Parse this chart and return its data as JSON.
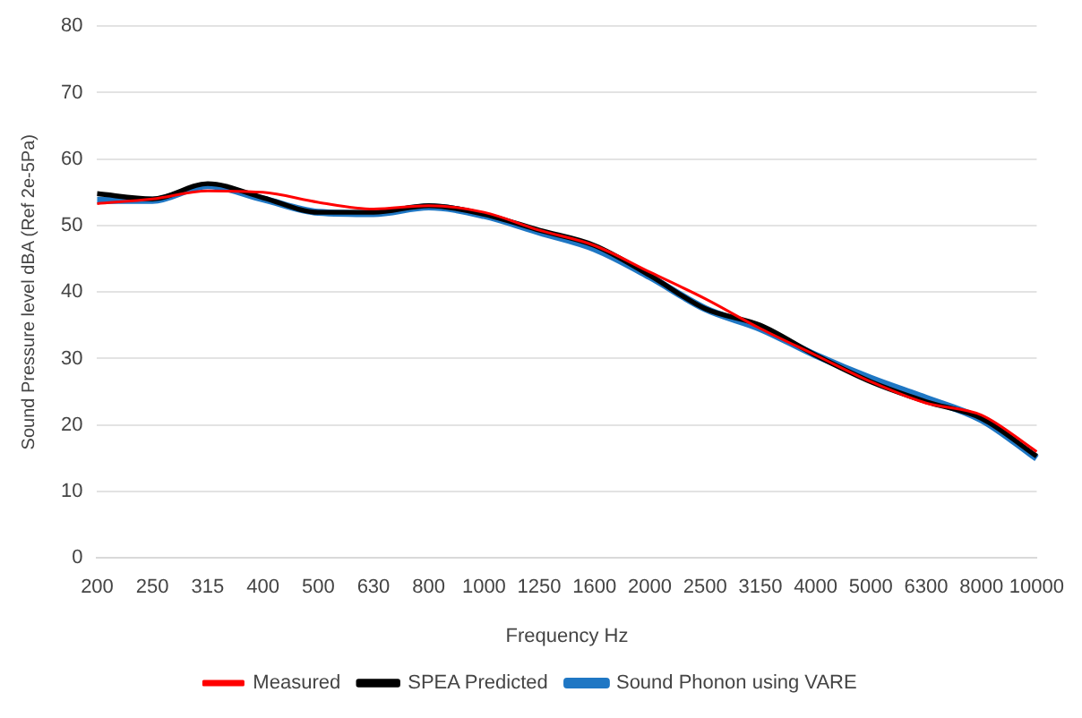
{
  "chart_data": {
    "type": "line",
    "xlabel": "Frequency Hz",
    "ylabel": "Sound Pressure level dBA (Ref 2e-5Pa)",
    "categories": [
      "200",
      "250",
      "315",
      "400",
      "500",
      "630",
      "800",
      "1000",
      "1250",
      "1600",
      "2000",
      "2500",
      "3150",
      "4000",
      "5000",
      "6300",
      "8000",
      "10000"
    ],
    "series": [
      {
        "name": "Measured",
        "color": "#ff0000",
        "values": [
          53.3,
          54,
          55.2,
          55,
          53.5,
          52.5,
          53,
          52,
          49.3,
          47,
          43,
          39,
          34.5,
          30.5,
          26.5,
          23.3,
          21.5,
          16
        ]
      },
      {
        "name": "SPEA Predicted",
        "color": "#000000",
        "values": [
          54.8,
          54,
          56.3,
          54.2,
          52,
          52,
          53,
          51.7,
          49.3,
          47,
          42.5,
          37.5,
          35,
          30.5,
          26.5,
          23.5,
          21,
          15.3
        ]
      },
      {
        "name": "Sound Phonon using VARE",
        "color": "#1f77c4",
        "values": [
          53.8,
          53.8,
          56,
          54,
          52,
          51.8,
          52.8,
          51.5,
          49,
          46.5,
          42.3,
          37.5,
          34.5,
          30.5,
          27,
          24,
          20.8,
          15
        ]
      }
    ],
    "ylim": [
      0,
      80
    ],
    "yticks": [
      0,
      10,
      20,
      30,
      40,
      50,
      60,
      70,
      80
    ],
    "grid": "y",
    "legend": "bottom",
    "marker": "none",
    "line_style": "solid"
  }
}
